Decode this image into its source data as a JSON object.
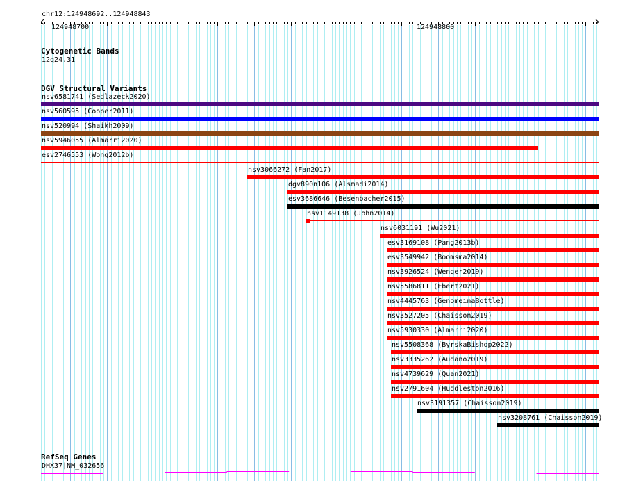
{
  "ruler": {
    "location": "chr12:124948692..124948843",
    "start": 124948692,
    "end": 124948843,
    "tick_labels": [
      {
        "bp": 124948700,
        "label": "124948700"
      },
      {
        "bp": 124948800,
        "label": "124948800"
      }
    ]
  },
  "cytoband": {
    "title": "Cytogenetic Bands",
    "band": "12q24.31"
  },
  "dgv": {
    "title": "DGV Structural Variants",
    "variants": [
      {
        "label": "nsv6581741 (Sedlazeck2020)",
        "start": 124948692,
        "end": 124948843,
        "color": "#4b0a82",
        "style": "bar"
      },
      {
        "label": "nsv560595 (Cooper2011)",
        "start": 124948692,
        "end": 124948843,
        "color": "#0000ff",
        "style": "bar"
      },
      {
        "label": "nsv520994 (Shaikh2009)",
        "start": 124948692,
        "end": 124948843,
        "color": "#8b4513",
        "style": "bar"
      },
      {
        "label": "nsv5946055 (Almarri2020)",
        "start": 124948692,
        "end": 124948826,
        "color": "#ff0000",
        "style": "bar"
      },
      {
        "label": "esv2746553 (Wong2012b)",
        "start": 124948692,
        "end": 124948843,
        "color": "#ff0000",
        "style": "line"
      },
      {
        "label": "nsv3066272 (Fan2017)",
        "start": 124948748,
        "end": 124948843,
        "color": "#ff0000",
        "style": "bar"
      },
      {
        "label": "dgv890n106 (Alsmadi2014)",
        "start": 124948759,
        "end": 124948843,
        "color": "#ff0000",
        "style": "bar"
      },
      {
        "label": "esv3686646 (Besenbacher2015)",
        "start": 124948759,
        "end": 124948843,
        "color": "#000000",
        "style": "bar"
      },
      {
        "label": "nsv1149138 (John2014)",
        "start": 124948764,
        "end": 124948764,
        "color": "#ff0000",
        "style": "bar-line"
      },
      {
        "label": "nsv6031191 (Wu2021)",
        "start": 124948784,
        "end": 124948843,
        "color": "#ff0000",
        "style": "bar"
      },
      {
        "label": "esv3169108 (Pang2013b)",
        "start": 124948786,
        "end": 124948843,
        "color": "#ff0000",
        "style": "bar"
      },
      {
        "label": "esv3549942 (Boomsma2014)",
        "start": 124948786,
        "end": 124948843,
        "color": "#ff0000",
        "style": "bar"
      },
      {
        "label": "nsv3926524 (Wenger2019)",
        "start": 124948786,
        "end": 124948843,
        "color": "#ff0000",
        "style": "bar"
      },
      {
        "label": "nsv5586811 (Ebert2021)",
        "start": 124948786,
        "end": 124948843,
        "color": "#ff0000",
        "style": "bar"
      },
      {
        "label": "nsv4445763 (GenomeinaBottle)",
        "start": 124948786,
        "end": 124948843,
        "color": "#ff0000",
        "style": "bar"
      },
      {
        "label": "nsv3527205 (Chaisson2019)",
        "start": 124948786,
        "end": 124948843,
        "color": "#ff0000",
        "style": "bar"
      },
      {
        "label": "nsv5930330 (Almarri2020)",
        "start": 124948786,
        "end": 124948843,
        "color": "#ff0000",
        "style": "bar"
      },
      {
        "label": "nsv5508368 (ByrskaBishop2022)",
        "start": 124948787,
        "end": 124948843,
        "color": "#ff0000",
        "style": "bar"
      },
      {
        "label": "nsv3335262 (Audano2019)",
        "start": 124948787,
        "end": 124948843,
        "color": "#ff0000",
        "style": "bar"
      },
      {
        "label": "nsv4739629 (Quan2021)",
        "start": 124948787,
        "end": 124948843,
        "color": "#ff0000",
        "style": "bar"
      },
      {
        "label": "nsv2791604 (Huddleston2016)",
        "start": 124948787,
        "end": 124948843,
        "color": "#ff0000",
        "style": "bar"
      },
      {
        "label": "nsv3191357 (Chaisson2019)",
        "start": 124948794,
        "end": 124948843,
        "color": "#000000",
        "style": "bar"
      },
      {
        "label": "nsv3208761 (Chaisson2019)",
        "start": 124948816,
        "end": 124948843,
        "color": "#000000",
        "style": "bar"
      }
    ]
  },
  "refseq": {
    "title": "RefSeq Genes",
    "gene": "DHX37|NM_032656",
    "color": "#ff00ff"
  },
  "colors": {
    "grid_minor": "#aeeef2",
    "grid_major": "#88bde4"
  }
}
